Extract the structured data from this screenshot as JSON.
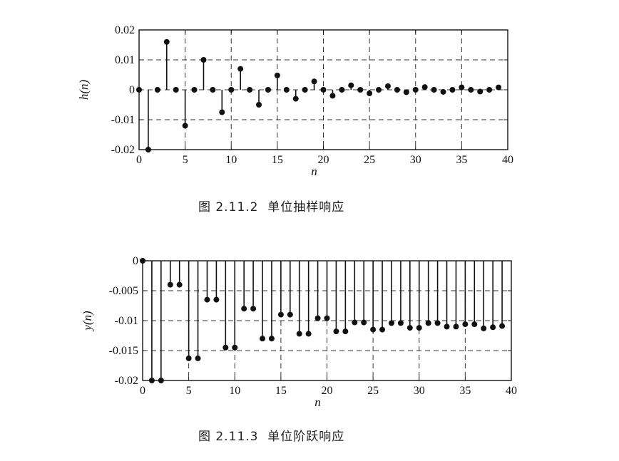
{
  "chart_data": [
    {
      "type": "stem",
      "xlabel": "n",
      "ylabel": "h(n)",
      "xlim": [
        0,
        40
      ],
      "ylim": [
        -0.02,
        0.02
      ],
      "xticks": [
        0,
        5,
        10,
        15,
        20,
        25,
        30,
        35,
        40
      ],
      "yticks": [
        0.02,
        0.01,
        0,
        -0.01,
        -0.02
      ],
      "ytick_labels": [
        "0.02",
        "0.01",
        "0",
        "-0.01",
        "-0.02"
      ],
      "grid": true,
      "x": [
        0,
        1,
        2,
        3,
        4,
        5,
        6,
        7,
        8,
        9,
        10,
        11,
        12,
        13,
        14,
        15,
        16,
        17,
        18,
        19,
        20,
        21,
        22,
        23,
        24,
        25,
        26,
        27,
        28,
        29,
        30,
        31,
        32,
        33,
        34,
        35,
        36,
        37,
        38,
        39
      ],
      "values": [
        0,
        -0.02,
        0,
        0.016,
        0,
        -0.012,
        0,
        0.01,
        0,
        -0.0075,
        0,
        0.007,
        0,
        -0.005,
        0,
        0.0048,
        0,
        -0.003,
        0,
        0.0028,
        0,
        -0.002,
        0,
        0.0015,
        0,
        -0.0012,
        0,
        0.0012,
        0,
        -0.0008,
        0,
        0.0009,
        0,
        -0.0007,
        0,
        0.0008,
        0,
        -0.0006,
        0,
        0.0008
      ]
    },
    {
      "type": "stem",
      "xlabel": "n",
      "ylabel": "y(n)",
      "xlim": [
        0,
        40
      ],
      "ylim": [
        -0.02,
        0
      ],
      "xticks": [
        0,
        5,
        10,
        15,
        20,
        25,
        30,
        35,
        40
      ],
      "yticks": [
        0,
        -0.005,
        -0.01,
        -0.015,
        -0.02
      ],
      "ytick_labels": [
        "0",
        "-0.005",
        "-0.01",
        "-0.015",
        "-0.02"
      ],
      "grid": true,
      "x": [
        0,
        1,
        2,
        3,
        4,
        5,
        6,
        7,
        8,
        9,
        10,
        11,
        12,
        13,
        14,
        15,
        16,
        17,
        18,
        19,
        20,
        21,
        22,
        23,
        24,
        25,
        26,
        27,
        28,
        29,
        30,
        31,
        32,
        33,
        34,
        35,
        36,
        37,
        38,
        39
      ],
      "values": [
        0,
        -0.02,
        -0.02,
        -0.004,
        -0.004,
        -0.0163,
        -0.0163,
        -0.0065,
        -0.0065,
        -0.0145,
        -0.0145,
        -0.008,
        -0.008,
        -0.013,
        -0.013,
        -0.009,
        -0.009,
        -0.0122,
        -0.0122,
        -0.0096,
        -0.0096,
        -0.0118,
        -0.0118,
        -0.0103,
        -0.0103,
        -0.0115,
        -0.0115,
        -0.0104,
        -0.0104,
        -0.0112,
        -0.0112,
        -0.0104,
        -0.0104,
        -0.011,
        -0.011,
        -0.0106,
        -0.0106,
        -0.0113,
        -0.0111,
        -0.0109
      ]
    }
  ],
  "captions": {
    "fig1": "图 2.11.2  单位抽样响应",
    "fig2": "图 2.11.3  单位阶跃响应"
  }
}
